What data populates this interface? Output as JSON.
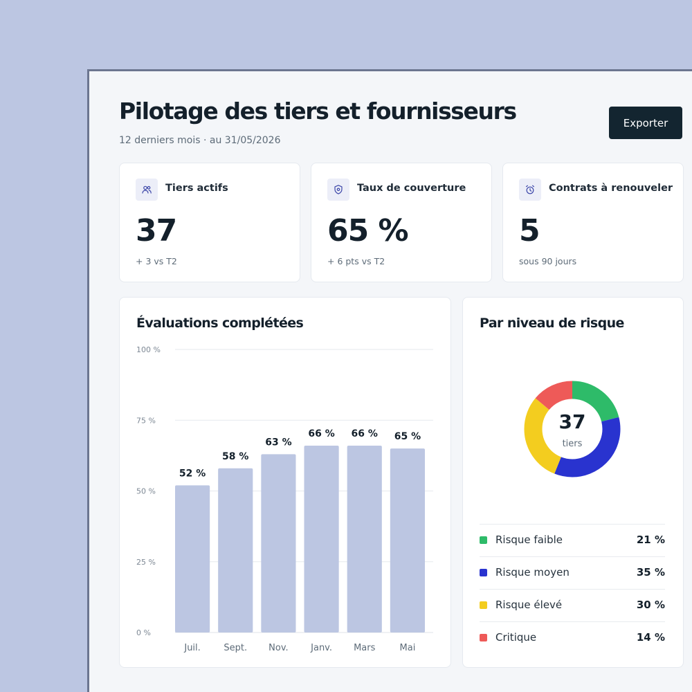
{
  "header": {
    "title": "Pilotage des tiers et fournisseurs",
    "subtitle": "12 derniers mois · au 31/05/2026",
    "export_label": "Exporter"
  },
  "kpis": [
    {
      "icon": "users-icon",
      "label": "Tiers actifs",
      "value": "37",
      "sub": "+ 3 vs T2"
    },
    {
      "icon": "shield-icon",
      "label": "Taux de couverture",
      "value": "65 %",
      "sub": "+ 6 pts vs T2"
    },
    {
      "icon": "alarm-clock-icon",
      "label": "Contrats à renouveler",
      "value": "5",
      "sub": "sous 90 jours"
    }
  ],
  "evaluations": {
    "title": "Évaluations complétées"
  },
  "risk": {
    "title": "Par niveau de risque",
    "center_value": "37",
    "center_label": "tiers",
    "items": [
      {
        "label": "Risque faible",
        "value": "21 %",
        "color": "#2ebb69"
      },
      {
        "label": "Risque moyen",
        "value": "35 %",
        "color": "#2933cf"
      },
      {
        "label": "Risque élevé",
        "value": "30 %",
        "color": "#f3cd1f"
      },
      {
        "label": "Critique",
        "value": "14 %",
        "color": "#ee5a58"
      }
    ]
  },
  "colors": {
    "bar": "#bcc6e2",
    "accent_dark": "#132530",
    "background": "#bcc6e2"
  },
  "chart_data": [
    {
      "type": "bar",
      "title": "Évaluations complétées",
      "categories": [
        "Juil.",
        "Sept.",
        "Nov.",
        "Janv.",
        "Mars",
        "Mai"
      ],
      "values": [
        52,
        58,
        63,
        66,
        66,
        65
      ],
      "value_labels": [
        "52 %",
        "58 %",
        "63 %",
        "66 %",
        "66 %",
        "65 %"
      ],
      "y_ticks": [
        "0 %",
        "25 %",
        "50 %",
        "75 %",
        "100 %"
      ],
      "ylim": [
        0,
        100
      ],
      "grid": true
    },
    {
      "type": "pie",
      "title": "Par niveau de risque",
      "categories": [
        "Risque faible",
        "Risque moyen",
        "Risque élevé",
        "Critique"
      ],
      "values": [
        21,
        35,
        30,
        14
      ],
      "colors": [
        "#2ebb69",
        "#2933cf",
        "#f3cd1f",
        "#ee5a58"
      ],
      "center_value": "37",
      "center_label": "tiers"
    }
  ]
}
